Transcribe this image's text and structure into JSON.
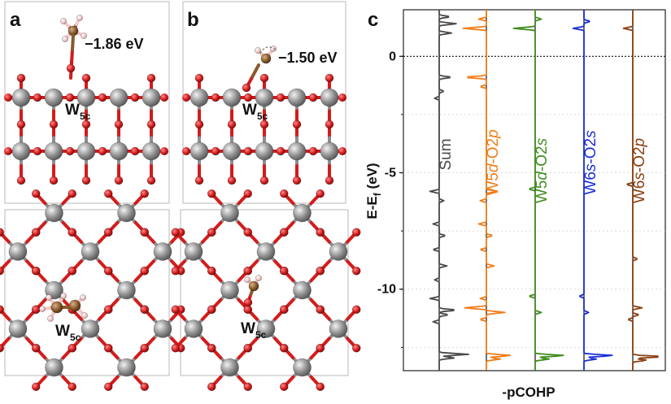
{
  "panels": {
    "a": {
      "letter": "a",
      "adsorption_energy": "−1.86 eV",
      "site_label_main": "W",
      "site_label_sub": "5c"
    },
    "b": {
      "letter": "b",
      "adsorption_energy": "−1.50 eV",
      "site_label_main": "W",
      "site_label_sub": "5c"
    },
    "c": {
      "letter": "c"
    }
  },
  "colors": {
    "tungsten": "#8d8d8d",
    "oxygen": "#d41b1b",
    "carbon": "#8a5a2b",
    "hydrogen": "#f2c9c9",
    "sum": "#4a4a4a",
    "w5d_o2p": "#f07f1a",
    "w5d_o2s": "#3f8e1e",
    "w6s_o2s": "#1a2fd6",
    "w6s_o2p": "#8a3e0f"
  },
  "chart_data": {
    "type": "line",
    "title": "",
    "xlabel": "-pCOHP",
    "ylabel_main": "E-E",
    "ylabel_sub": "f",
    "ylabel_unit": " (eV)",
    "ylim": [
      -13.5,
      2.0
    ],
    "yticks": [
      0,
      -5,
      -10
    ],
    "ytick_labels": [
      "0",
      "-5",
      "-10"
    ],
    "fermi_level": 0,
    "series": [
      {
        "key": "sum",
        "name_parts": [
          {
            "text": "Sum",
            "italic": false
          }
        ],
        "peaks": [
          [
            1.7,
            0.35
          ],
          [
            1.4,
            0.55
          ],
          [
            1.0,
            0.4
          ],
          [
            -0.9,
            0.4
          ],
          [
            -1.5,
            0.15
          ],
          [
            -1.8,
            -0.15
          ],
          [
            -5.8,
            -0.3
          ],
          [
            -6.2,
            0.15
          ],
          [
            -7.2,
            -0.2
          ],
          [
            -7.7,
            0.2
          ],
          [
            -8.3,
            -0.2
          ],
          [
            -9.0,
            0.25
          ],
          [
            -9.6,
            -0.15
          ],
          [
            -10.4,
            -0.3
          ],
          [
            -10.9,
            0.55
          ],
          [
            -11.1,
            0.3
          ],
          [
            -11.4,
            -0.2
          ],
          [
            -12.8,
            0.95
          ],
          [
            -12.95,
            0.5
          ]
        ]
      },
      {
        "key": "w5d_o2p",
        "name_parts": [
          {
            "text": "W5",
            "italic": false
          },
          {
            "text": "d",
            "italic": true
          },
          {
            "text": "-O2",
            "italic": false
          },
          {
            "text": "p",
            "italic": true
          }
        ],
        "peaks": [
          [
            1.6,
            -0.25
          ],
          [
            1.2,
            -0.75
          ],
          [
            -0.9,
            -0.7
          ],
          [
            -1.3,
            -0.2
          ],
          [
            -5.8,
            0.35
          ],
          [
            -6.2,
            -0.2
          ],
          [
            -7.2,
            -0.25
          ],
          [
            -7.7,
            0.2
          ],
          [
            -8.3,
            -0.2
          ],
          [
            -9.0,
            0.25
          ],
          [
            -10.4,
            -0.2
          ],
          [
            -10.8,
            -0.7
          ],
          [
            -11.0,
            0.6
          ],
          [
            -11.3,
            -0.2
          ],
          [
            -12.85,
            0.8
          ],
          [
            -13.0,
            0.45
          ]
        ]
      },
      {
        "key": "w5d_o2s",
        "name_parts": [
          {
            "text": "W5",
            "italic": false
          },
          {
            "text": "d",
            "italic": true
          },
          {
            "text": "-O2",
            "italic": false
          },
          {
            "text": "s",
            "italic": true
          }
        ],
        "peaks": [
          [
            1.6,
            0.2
          ],
          [
            1.2,
            -0.7
          ],
          [
            -5.7,
            -0.2
          ],
          [
            -10.3,
            -0.2
          ],
          [
            -11.0,
            0.2
          ],
          [
            -12.85,
            0.95
          ],
          [
            -13.0,
            0.45
          ]
        ]
      },
      {
        "key": "w6s_o2s",
        "name_parts": [
          {
            "text": "W6",
            "italic": false
          },
          {
            "text": "s",
            "italic": true
          },
          {
            "text": "-O2",
            "italic": false
          },
          {
            "text": "s",
            "italic": true
          }
        ],
        "peaks": [
          [
            1.5,
            0.2
          ],
          [
            1.2,
            -0.35
          ],
          [
            -10.3,
            -0.15
          ],
          [
            -11.0,
            0.15
          ],
          [
            -12.85,
            0.95
          ],
          [
            -13.0,
            0.4
          ]
        ]
      },
      {
        "key": "w6s_o2p",
        "name_parts": [
          {
            "text": "W6",
            "italic": false
          },
          {
            "text": "s",
            "italic": true
          },
          {
            "text": "-O2",
            "italic": false
          },
          {
            "text": "p",
            "italic": true
          }
        ],
        "peaks": [
          [
            1.2,
            -0.3
          ],
          [
            -5.5,
            -0.2
          ],
          [
            -8.7,
            0.15
          ],
          [
            -10.8,
            0.3
          ],
          [
            -11.1,
            0.2
          ],
          [
            -11.3,
            -0.15
          ],
          [
            -12.9,
            0.95
          ],
          [
            -13.05,
            0.45
          ]
        ]
      }
    ]
  }
}
